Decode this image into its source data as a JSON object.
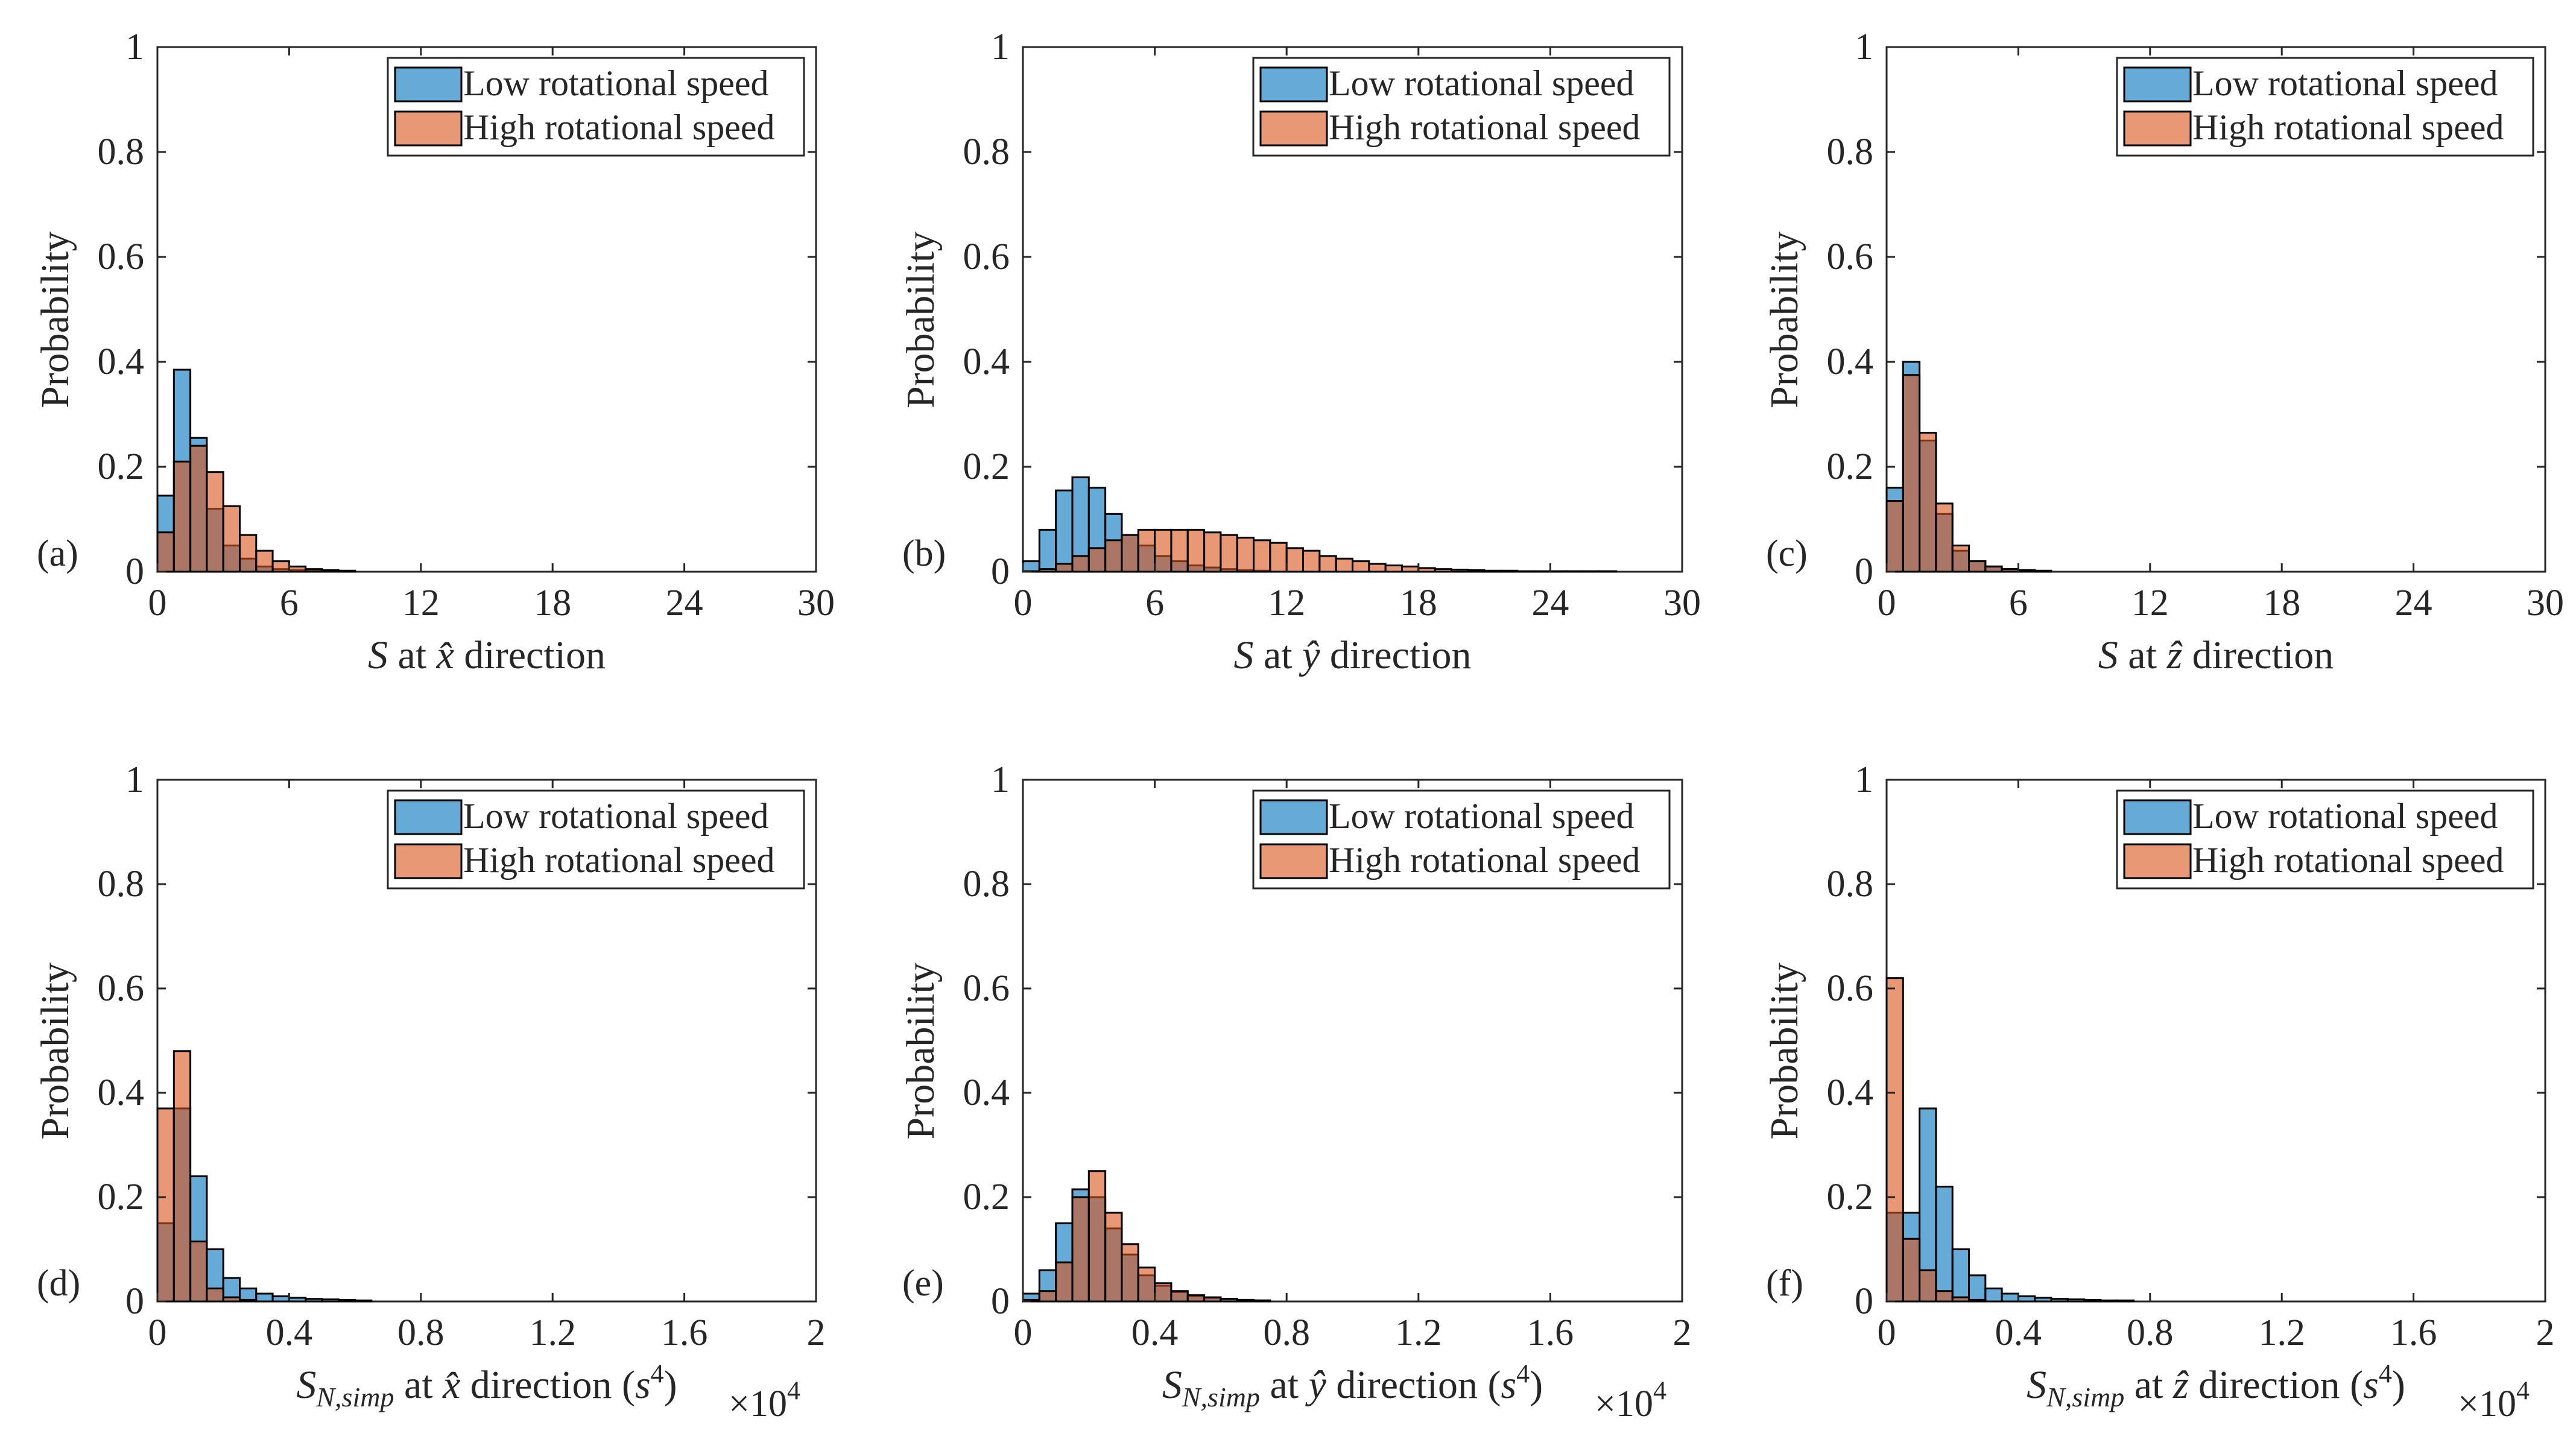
{
  "figure": {
    "legend": {
      "low": "Low rotational speed",
      "high": "High rotational speed"
    },
    "colors": {
      "low": "#0072BD",
      "high": "#D95319",
      "axis": "#262626",
      "background": "#ffffff"
    }
  },
  "chart_data": [
    {
      "type": "bar",
      "panel": "(a)",
      "ylabel": "Probability",
      "xlabel": "S at x̂ direction",
      "xlabel_parts": {
        "var": "S",
        "text": " at ",
        "dir": "x̂",
        "suffix": " direction",
        "unit": ""
      },
      "xlim": [
        0,
        30
      ],
      "ylim": [
        0,
        1
      ],
      "xticks": [
        "0",
        "6",
        "12",
        "18",
        "24",
        "30"
      ],
      "yticks": [
        "0",
        "0.2",
        "0.4",
        "0.6",
        "0.8",
        "1"
      ],
      "multiplier": "",
      "bin_width": 0.75,
      "series": [
        {
          "name": "Low rotational speed",
          "values": [
            0.145,
            0.385,
            0.255,
            0.12,
            0.05,
            0.025,
            0.01,
            0.005,
            0.003,
            0.002
          ]
        },
        {
          "name": "High rotational speed",
          "values": [
            0.075,
            0.21,
            0.24,
            0.19,
            0.125,
            0.07,
            0.04,
            0.02,
            0.01,
            0.005,
            0.003,
            0.002
          ]
        }
      ]
    },
    {
      "type": "bar",
      "panel": "(b)",
      "ylabel": "Probability",
      "xlabel": "S at ŷ direction",
      "xlabel_parts": {
        "var": "S",
        "text": " at ",
        "dir": "ŷ",
        "suffix": " direction",
        "unit": ""
      },
      "xlim": [
        0,
        30
      ],
      "ylim": [
        0,
        1
      ],
      "xticks": [
        "0",
        "6",
        "12",
        "18",
        "24",
        "30"
      ],
      "yticks": [
        "0",
        "0.2",
        "0.4",
        "0.6",
        "0.8",
        "1"
      ],
      "multiplier": "",
      "bin_width": 0.75,
      "series": [
        {
          "name": "Low rotational speed",
          "values": [
            0.02,
            0.08,
            0.155,
            0.18,
            0.16,
            0.11,
            0.07,
            0.05,
            0.03,
            0.02,
            0.012,
            0.008,
            0.005,
            0.003,
            0.002
          ]
        },
        {
          "name": "High rotational speed",
          "values": [
            0.001,
            0.005,
            0.015,
            0.03,
            0.045,
            0.06,
            0.07,
            0.08,
            0.08,
            0.08,
            0.08,
            0.075,
            0.07,
            0.065,
            0.06,
            0.055,
            0.045,
            0.04,
            0.03,
            0.025,
            0.02,
            0.015,
            0.012,
            0.01,
            0.007,
            0.005,
            0.004,
            0.003,
            0.002,
            0.002,
            0.001,
            0.001,
            0.001,
            0.001,
            0.001,
            0.001
          ]
        }
      ]
    },
    {
      "type": "bar",
      "panel": "(c)",
      "ylabel": "Probability",
      "xlabel": "S at ẑ direction",
      "xlabel_parts": {
        "var": "S",
        "text": " at ",
        "dir": "ẑ",
        "suffix": " direction",
        "unit": ""
      },
      "xlim": [
        0,
        30
      ],
      "ylim": [
        0,
        1
      ],
      "xticks": [
        "0",
        "6",
        "12",
        "18",
        "24",
        "30"
      ],
      "yticks": [
        "0",
        "0.2",
        "0.4",
        "0.6",
        "0.8",
        "1"
      ],
      "multiplier": "",
      "bin_width": 0.75,
      "series": [
        {
          "name": "Low rotational speed",
          "values": [
            0.16,
            0.4,
            0.25,
            0.11,
            0.04,
            0.02,
            0.01,
            0.005,
            0.003,
            0.002
          ]
        },
        {
          "name": "High rotational speed",
          "values": [
            0.135,
            0.375,
            0.265,
            0.13,
            0.05,
            0.02,
            0.01,
            0.005,
            0.003
          ]
        }
      ]
    },
    {
      "type": "bar",
      "panel": "(d)",
      "ylabel": "Probability",
      "xlabel": "S_N,simp at x̂ direction (s^4)",
      "xlabel_parts": {
        "var": "S",
        "sub": "N,simp",
        "text": " at ",
        "dir": "x̂",
        "suffix": " direction (",
        "unit": "s",
        "unit_sup": "4",
        "close": ")"
      },
      "xlim": [
        0,
        2
      ],
      "ylim": [
        0,
        1
      ],
      "xticks": [
        "0",
        "0.4",
        "0.8",
        "1.2",
        "1.6",
        "2"
      ],
      "yticks": [
        "0",
        "0.2",
        "0.4",
        "0.6",
        "0.8",
        "1"
      ],
      "multiplier": "×10",
      "multiplier_exp": "4",
      "bin_width": 0.05,
      "series": [
        {
          "name": "Low rotational speed",
          "values": [
            0.15,
            0.37,
            0.24,
            0.1,
            0.045,
            0.025,
            0.015,
            0.01,
            0.007,
            0.005,
            0.004,
            0.003,
            0.002
          ]
        },
        {
          "name": "High rotational speed",
          "values": [
            0.37,
            0.48,
            0.115,
            0.025,
            0.008,
            0.003
          ]
        }
      ]
    },
    {
      "type": "bar",
      "panel": "(e)",
      "ylabel": "Probability",
      "xlabel": "S_N,simp at ŷ direction (s^4)",
      "xlabel_parts": {
        "var": "S",
        "sub": "N,simp",
        "text": " at ",
        "dir": "ŷ",
        "suffix": " direction (",
        "unit": "s",
        "unit_sup": "4",
        "close": ")"
      },
      "xlim": [
        0,
        2
      ],
      "ylim": [
        0,
        1
      ],
      "xticks": [
        "0",
        "0.4",
        "0.8",
        "1.2",
        "1.6",
        "2"
      ],
      "yticks": [
        "0",
        "0.2",
        "0.4",
        "0.6",
        "0.8",
        "1"
      ],
      "multiplier": "×10",
      "multiplier_exp": "4",
      "bin_width": 0.05,
      "series": [
        {
          "name": "Low rotational speed",
          "values": [
            0.015,
            0.06,
            0.15,
            0.215,
            0.2,
            0.14,
            0.09,
            0.05,
            0.03,
            0.018,
            0.01,
            0.007,
            0.005,
            0.003,
            0.002
          ]
        },
        {
          "name": "High rotational speed",
          "values": [
            0.003,
            0.02,
            0.075,
            0.2,
            0.25,
            0.17,
            0.11,
            0.065,
            0.035,
            0.02,
            0.012,
            0.008,
            0.005,
            0.003,
            0.002
          ]
        }
      ]
    },
    {
      "type": "bar",
      "panel": "(f)",
      "ylabel": "Probability",
      "xlabel": "S_N,simp at ẑ direction (s^4)",
      "xlabel_parts": {
        "var": "S",
        "sub": "N,simp",
        "text": " at ",
        "dir": "ẑ",
        "suffix": " direction (",
        "unit": "s",
        "unit_sup": "4",
        "close": ")"
      },
      "xlim": [
        0,
        2
      ],
      "ylim": [
        0,
        1
      ],
      "xticks": [
        "0",
        "0.4",
        "0.8",
        "1.2",
        "1.6",
        "2"
      ],
      "yticks": [
        "0",
        "0.2",
        "0.4",
        "0.6",
        "0.8",
        "1"
      ],
      "multiplier": "×10",
      "multiplier_exp": "4",
      "bin_width": 0.05,
      "series": [
        {
          "name": "Low rotational speed",
          "values": [
            0.17,
            0.17,
            0.37,
            0.22,
            0.1,
            0.05,
            0.025,
            0.015,
            0.01,
            0.007,
            0.005,
            0.004,
            0.003,
            0.002,
            0.002
          ]
        },
        {
          "name": "High rotational speed",
          "values": [
            0.62,
            0.12,
            0.06,
            0.02,
            0.008,
            0.003
          ]
        }
      ]
    }
  ]
}
